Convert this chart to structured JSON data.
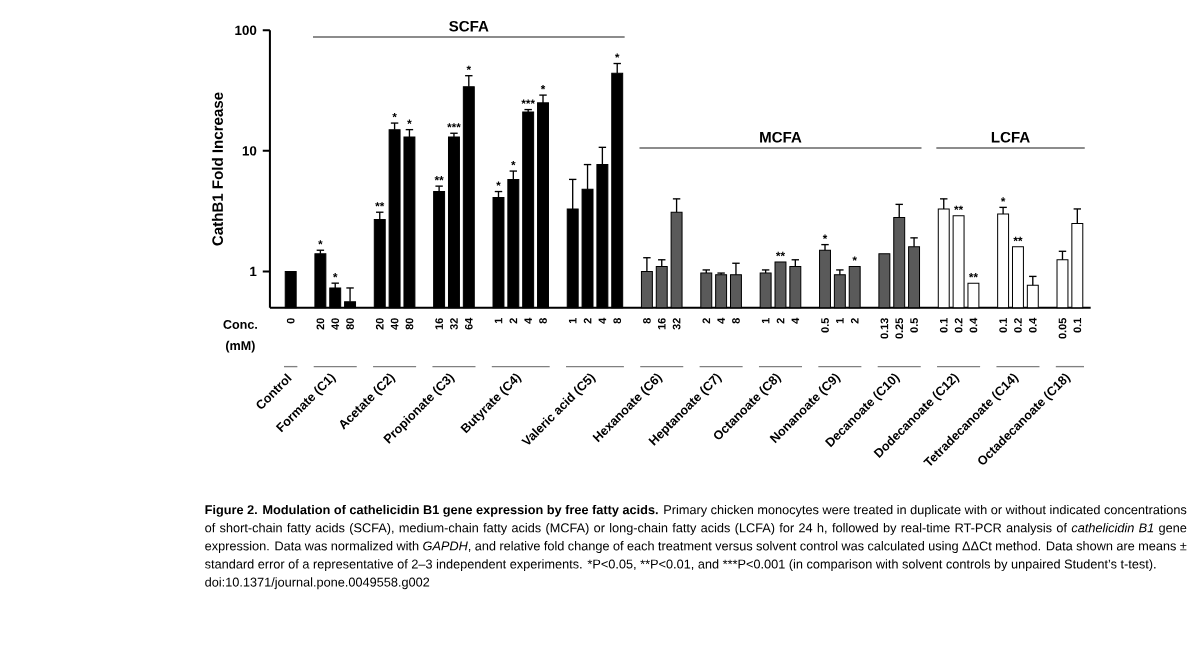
{
  "chart_data": {
    "type": "bar",
    "log": "y",
    "ylabel": "CathB1 Fold Increase",
    "categories": [
      "0",
      "20",
      "40",
      "80",
      "20",
      "40",
      "80",
      "16",
      "32",
      "64",
      "1",
      "2",
      "4",
      "8",
      "1",
      "2",
      "4",
      "8",
      "8",
      "16",
      "32",
      "2",
      "4",
      "8",
      "1",
      "2",
      "4",
      "0.5",
      "1",
      "2",
      "0.13",
      "0.25",
      "0.5",
      "0.1",
      "0.2",
      "0.4",
      "0.1",
      "0.2",
      "0.4",
      "0.05",
      "0.1"
    ],
    "values": [
      1.0,
      1.4,
      0.73,
      0.56,
      2.7,
      15,
      13,
      4.6,
      13,
      34,
      4.1,
      5.8,
      21,
      25,
      3.3,
      4.8,
      7.7,
      44,
      1.0,
      1.1,
      3.1,
      0.97,
      0.94,
      0.94,
      0.97,
      1.2,
      1.1,
      1.5,
      0.94,
      1.1,
      1.4,
      2.8,
      1.6,
      3.3,
      2.9,
      0.8,
      3.0,
      1.6,
      0.77,
      1.25,
      2.5
    ],
    "errors": [
      null,
      [
        1.4,
        1.5
      ],
      [
        0.73,
        0.8
      ],
      [
        0.56,
        0.73
      ],
      [
        2.7,
        3.1
      ],
      [
        15,
        17
      ],
      [
        13,
        15
      ],
      [
        4.6,
        5.1
      ],
      [
        13,
        14
      ],
      [
        34,
        42
      ],
      [
        4.1,
        4.6
      ],
      [
        5.8,
        6.8
      ],
      [
        21,
        22
      ],
      [
        25,
        29
      ],
      [
        3.3,
        5.8
      ],
      [
        4.8,
        7.7
      ],
      [
        7.7,
        10.7
      ],
      [
        44,
        53
      ],
      [
        1.0,
        1.3
      ],
      [
        1.1,
        1.25
      ],
      [
        3.1,
        4.0
      ],
      [
        0.97,
        1.03
      ],
      [
        0.94,
        0.97
      ],
      [
        0.94,
        1.17
      ],
      [
        0.97,
        1.03
      ],
      null,
      [
        1.1,
        1.25
      ],
      [
        1.5,
        1.67
      ],
      [
        0.94,
        1.03
      ],
      null,
      null,
      [
        2.8,
        3.6
      ],
      [
        1.6,
        1.9
      ],
      [
        3.3,
        4.0
      ],
      null,
      null,
      [
        3.0,
        3.4
      ],
      null,
      [
        0.77,
        0.91
      ],
      [
        1.25,
        1.47
      ],
      [
        2.5,
        3.3
      ]
    ],
    "value_labels": [
      null,
      "*",
      "*",
      null,
      "**",
      "*",
      "*",
      "**",
      "***",
      "*",
      "*",
      "*",
      "***",
      "*",
      null,
      null,
      null,
      "*",
      null,
      null,
      null,
      null,
      null,
      null,
      null,
      "**",
      null,
      "*",
      null,
      "*",
      null,
      null,
      null,
      null,
      "**",
      "**",
      "*",
      "**",
      null,
      null,
      null
    ],
    "colors": [
      "#000000",
      "#000000",
      "#000000",
      "#000000",
      "#000000",
      "#000000",
      "#000000",
      "#000000",
      "#000000",
      "#000000",
      "#000000",
      "#000000",
      "#000000",
      "#000000",
      "#000000",
      "#000000",
      "#000000",
      "#000000",
      "#5a5a5a",
      "#5a5a5a",
      "#5a5a5a",
      "#5a5a5a",
      "#5a5a5a",
      "#5a5a5a",
      "#5a5a5a",
      "#5a5a5a",
      "#5a5a5a",
      "#5a5a5a",
      "#5a5a5a",
      "#5a5a5a",
      "#5a5a5a",
      "#5a5a5a",
      "#5a5a5a",
      "#ffffff",
      "#ffffff",
      "#ffffff",
      "#ffffff",
      "#ffffff",
      "#ffffff",
      "#ffffff",
      "#ffffff"
    ],
    "ylim": [
      0.5,
      100
    ],
    "yticks": [
      1,
      10,
      100
    ],
    "annotations": [
      "SCFA",
      "MCFA",
      "LCFA",
      "Conc.",
      "(mM)",
      "Control",
      "Formate (C1)",
      "Acetate (C2)",
      "Propionate (C3)",
      "Butyrate (C4)",
      "Valeric acid (C5)",
      "Hexanoate (C6)",
      "Heptanoate (C7)",
      "Octanoate (C8)",
      "Nonanoate (C9)",
      "Decanoate (C10)",
      "Dodecanoate (C12)",
      "Tetradecanoate (C14)",
      "Octadecanoate (C18)",
      "**Figure 2. Modulation of cathelicidin B1 gene expression by free fatty acids.** Primary chicken monocytes were treated in duplicate with or without indicated concentrations of short-chain fatty acids (SCFA), medium-chain fatty acids (MCFA) or long-chain fatty acids (LCFA) for 24 h, followed by real-time RT-PCR analysis of *cathelicidin B1* gene expression. Data was normalized with *GAPDH*, and relative fold change of each treatment versus solvent control was calculated using ΔΔCt method. Data shown are means ± standard error of a representative of 2–3 independent experiments.",
      "*P<0.05,",
      "**P<0.01, and",
      "***P<0.001 (in comparison with solvent controls by unpaired Student’s t-test).",
      "doi:10.1371/journal.pone.0049558.g002"
    ]
  }
}
